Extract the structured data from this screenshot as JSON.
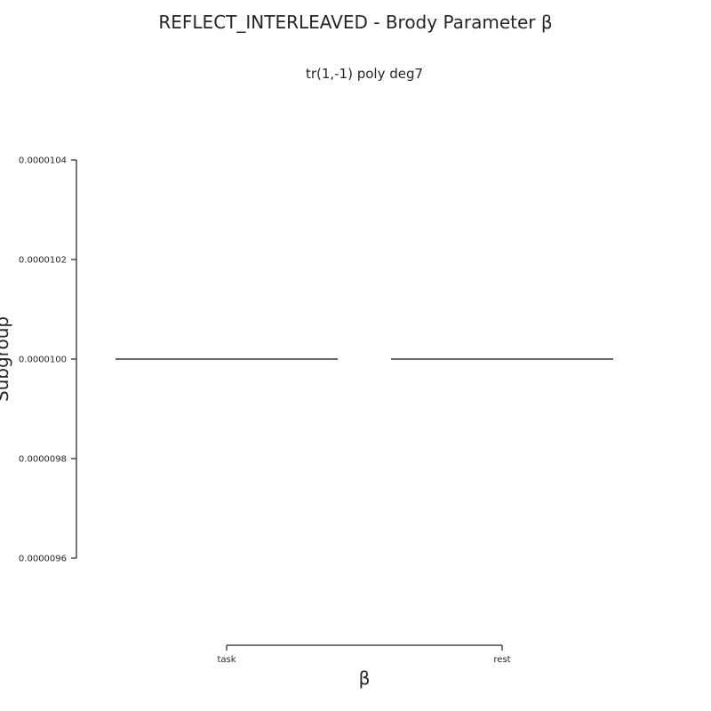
{
  "chart_data": {
    "type": "line",
    "title": "REFLECT_INTERLEAVED - Brody Parameter β",
    "subtitle": "tr(1,-1) poly deg7",
    "xlabel": "β",
    "ylabel": "Subgroup",
    "categories": [
      "task",
      "rest"
    ],
    "values": [
      1e-05,
      1e-05
    ],
    "ylim": [
      9.6e-06,
      1.04e-05
    ],
    "yticks": [
      9.6e-06,
      9.8e-06,
      1e-05,
      1.02e-05,
      1.04e-05
    ],
    "ytick_labels": [
      "0.0000096",
      "0.0000098",
      "0.0000100",
      "0.0000102",
      "0.0000104"
    ],
    "grid": false,
    "legend": "none"
  }
}
